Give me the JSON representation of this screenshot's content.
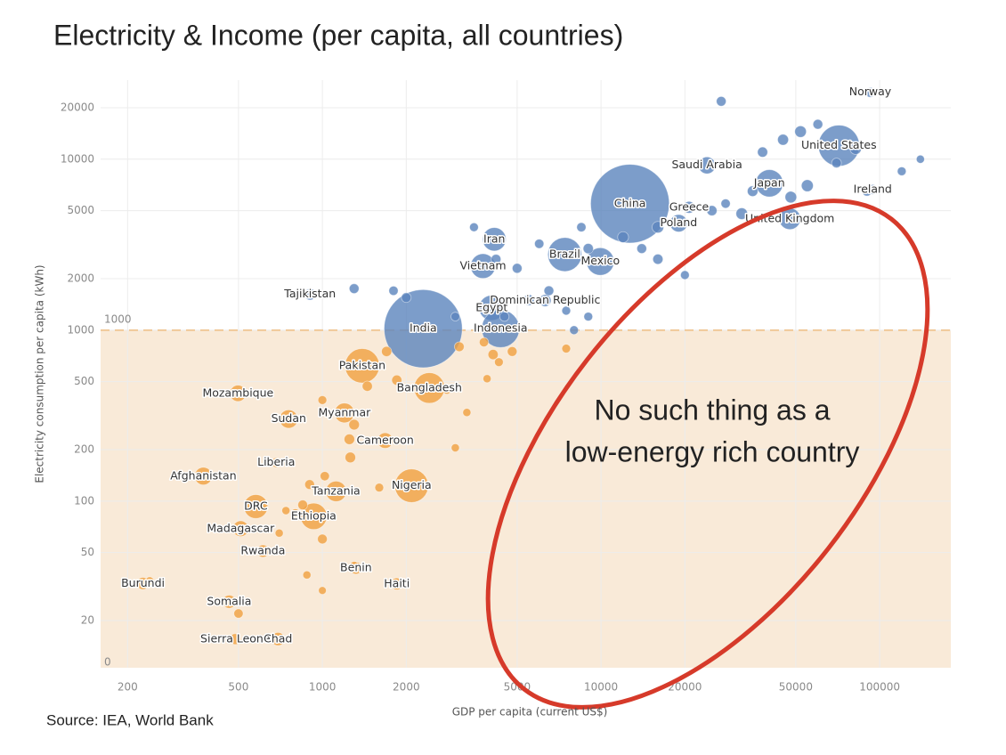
{
  "chart_data": {
    "type": "scatter",
    "title": "Electricity & Income (per capita, all countries)",
    "x_label": "GDP per capita (current US$)",
    "y_label": "Electricity consumption per capita (kWh)",
    "source": "Source: IEA, World Bank",
    "log_x": true,
    "log_y": true,
    "grid": true,
    "xlim": [
      160,
      180000
    ],
    "ylim": [
      10.6,
      29000
    ],
    "xticks": [
      200,
      500,
      1000,
      2000,
      5000,
      10000,
      20000,
      50000,
      100000
    ],
    "yticks": [
      20,
      50,
      100,
      200,
      500,
      1000,
      2000,
      5000,
      10000,
      20000
    ],
    "threshold": 1000,
    "shade_floor_label": "0",
    "annotation": [
      "No such thing as a",
      "low-energy rich country"
    ],
    "series": [
      {
        "color": "#5b84bd",
        "labels": [
          "Norway",
          "United States",
          "Saudi Arabia",
          "Japan",
          "Ireland",
          "China",
          "Greece",
          "Poland",
          "United Kingdom",
          "Iran",
          "Brazil",
          "Mexico",
          "Vietnam",
          "Tajikistan",
          "Egypt",
          "Dominican Republic",
          "India",
          "Indonesia",
          null,
          null,
          null,
          null,
          null,
          null,
          null,
          null,
          null,
          null,
          null,
          null,
          null,
          null,
          null,
          null,
          null,
          null,
          null,
          null,
          null,
          null,
          null,
          null,
          null,
          null,
          null,
          null,
          null,
          null,
          null,
          null,
          null,
          null,
          null,
          null,
          null
        ],
        "x": [
          92500,
          71400,
          24000,
          40200,
          94400,
          12700,
          20700,
          19000,
          47600,
          4140,
          7410,
          9940,
          3770,
          903,
          4050,
          6300,
          2300,
          4360,
          27000,
          52000,
          60000,
          45000,
          38000,
          82000,
          70000,
          140000,
          120000,
          90000,
          55000,
          48000,
          35000,
          28000,
          32000,
          25000,
          16000,
          14000,
          20000,
          16000,
          12000,
          8500,
          9000,
          6000,
          3500,
          4200,
          5000,
          6500,
          5500,
          7500,
          1800,
          1300,
          9000,
          8000,
          3000,
          4500,
          2000
        ],
        "y": [
          24600,
          12000,
          9200,
          7230,
          6650,
          5490,
          5230,
          4220,
          4480,
          3400,
          2770,
          2520,
          2370,
          1620,
          1350,
          1490,
          1020,
          1020,
          21800,
          14500,
          16000,
          13000,
          11000,
          11500,
          9500,
          10000,
          8500,
          6500,
          7000,
          6000,
          6500,
          5500,
          4800,
          5000,
          4000,
          3000,
          2100,
          2600,
          3500,
          4000,
          3000,
          3200,
          4000,
          2600,
          2300,
          1700,
          1500,
          1300,
          1700,
          1750,
          1200,
          1000,
          1200,
          1200,
          1550
        ],
        "size": [
          5.4,
          330,
          35,
          125,
          5,
          1400,
          10.7,
          38,
          67,
          85,
          212,
          128,
          97,
          9.5,
          102,
          11,
          1380,
          273,
          5,
          10,
          5,
          8,
          6,
          9,
          5,
          2,
          3,
          5,
          11,
          10,
          7,
          4,
          10,
          6,
          10,
          5,
          3,
          6,
          8,
          4,
          6,
          4,
          3,
          5,
          5,
          5,
          8,
          3,
          4,
          5,
          3,
          3,
          3,
          4,
          5
        ]
      },
      {
        "color": "#f0a040",
        "labels": [
          "Pakistan",
          "Bangladesh",
          "Mozambique",
          "Myanmar",
          "Sudan",
          "Cameroon",
          "Liberia",
          "Afghanistan",
          "Nigeria",
          "Tanzania",
          "DRC",
          "Ethiopia",
          "Madagascar",
          "Rwanda",
          "Benin",
          "Burundi",
          "Haiti",
          "Somalia",
          "Sierra Leone",
          "Chad",
          null,
          null,
          null,
          null,
          null,
          null,
          null,
          null,
          null,
          null,
          null,
          null,
          null,
          null,
          null,
          null,
          null,
          null,
          null,
          null,
          null,
          null,
          null,
          null,
          null,
          null,
          null,
          null,
          null,
          null
        ],
        "x": [
          1390,
          2420,
          498,
          1200,
          757,
          1680,
          683,
          374,
          2090,
          1120,
          577,
          931,
          509,
          612,
          1320,
          227,
          1850,
          463,
          487,
          693,
          1700,
          3100,
          4800,
          3800,
          4100,
          7500,
          4300,
          3900,
          3300,
          2800,
          1850,
          1450,
          1000,
          1300,
          1250,
          3000,
          1260,
          1600,
          1020,
          900,
          800,
          1000,
          850,
          740,
          700,
          880,
          1300,
          1000,
          500,
          240
        ],
        "y": [
          619,
          459,
          427,
          328,
          302,
          226,
          168,
          140,
          123,
          114,
          93,
          81.5,
          69,
          51,
          40.6,
          33,
          32.8,
          25.8,
          15.6,
          15.6,
          750,
          800,
          750,
          850,
          720,
          780,
          650,
          520,
          330,
          450,
          510,
          470,
          390,
          280,
          230,
          205,
          180,
          120,
          140,
          125,
          85,
          60,
          95,
          88,
          65,
          37,
          42,
          30,
          22,
          34
        ],
        "size": [
          220,
          165,
          31,
          54,
          44,
          27,
          5,
          39,
          206,
          60,
          90,
          115,
          28,
          13,
          12,
          12,
          11,
          16,
          8,
          16,
          6,
          5,
          5,
          4,
          6,
          3,
          3,
          2,
          2,
          4,
          6,
          6,
          3,
          7,
          7,
          2,
          7,
          3,
          4,
          5,
          3,
          5,
          5,
          2,
          2,
          2,
          2,
          1.5,
          4,
          3
        ]
      }
    ]
  }
}
